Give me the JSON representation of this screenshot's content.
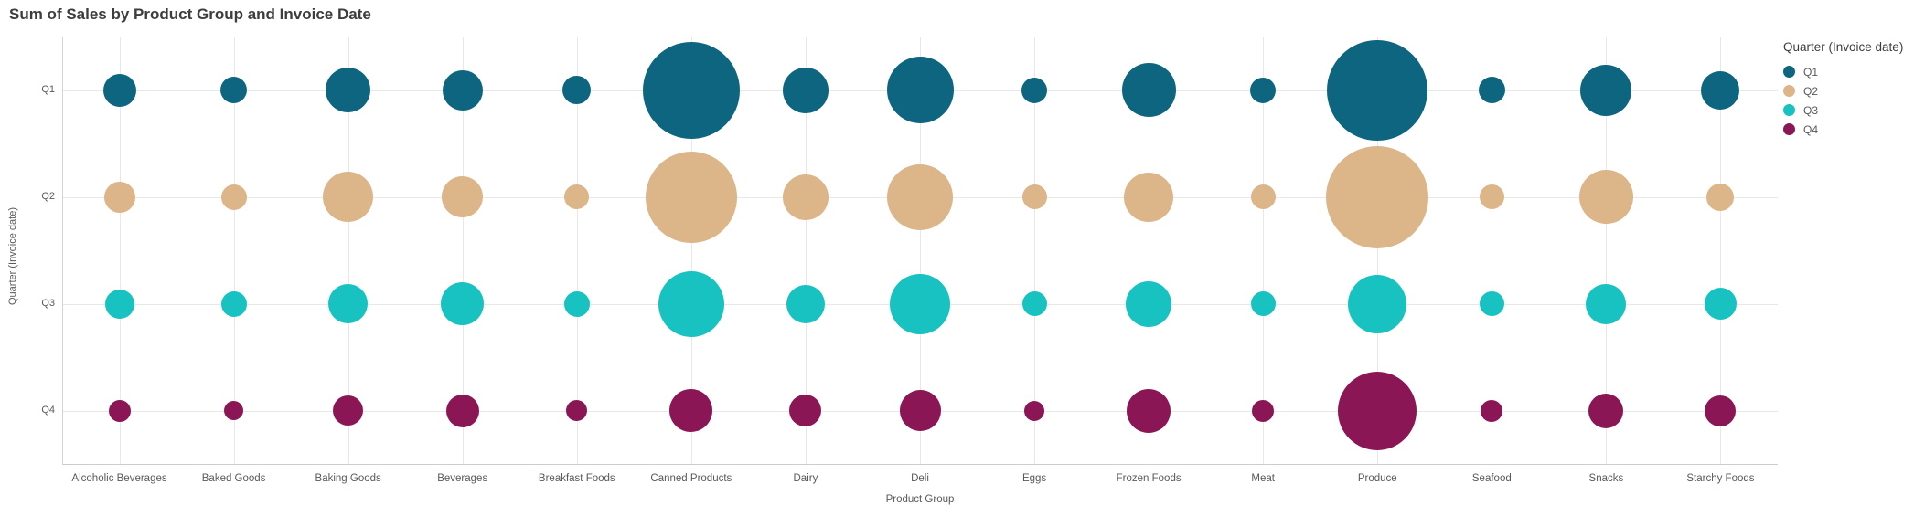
{
  "title": "Sum of Sales by Product Group and Invoice Date",
  "legend": {
    "title": "Quarter (Invoice date)",
    "items": [
      {
        "label": "Q1",
        "color": "#0d657f"
      },
      {
        "label": "Q2",
        "color": "#dcb589"
      },
      {
        "label": "Q3",
        "color": "#17c2c1"
      },
      {
        "label": "Q4",
        "color": "#8b1656"
      }
    ]
  },
  "axes": {
    "x_title": "Product Group",
    "y_title": "Quarter (Invoice date)",
    "y_ticks": [
      "Q1",
      "Q2",
      "Q3",
      "Q4"
    ]
  },
  "chart_data": {
    "type": "scatter",
    "subtype": "bubble",
    "title": "Sum of Sales by Product Group and Invoice Date",
    "xlabel": "Product Group",
    "ylabel": "Quarter (Invoice date)",
    "size_encoding": "bubble area encodes Sum of Sales; no numeric value labels are shown on screen",
    "grid": true,
    "legend_position": "right",
    "categories": [
      "Alcoholic Beverages",
      "Baked Goods",
      "Baking Goods",
      "Beverages",
      "Breakfast Foods",
      "Canned Products",
      "Dairy",
      "Deli",
      "Eggs",
      "Frozen Foods",
      "Meat",
      "Produce",
      "Seafood",
      "Snacks",
      "Starchy Foods"
    ],
    "y_categories": [
      "Q1",
      "Q2",
      "Q3",
      "Q4"
    ],
    "series": [
      {
        "name": "Q1",
        "color": "#0d657f",
        "radius_px": [
          18,
          14.5,
          24.5,
          22,
          15.5,
          53,
          25,
          36.5,
          14,
          29.5,
          14,
          55,
          14.5,
          28,
          21
        ]
      },
      {
        "name": "Q2",
        "color": "#dcb589",
        "radius_px": [
          17,
          14,
          27.5,
          22.5,
          13.5,
          50,
          25,
          36,
          13.5,
          27,
          13.5,
          56,
          13.5,
          29.5,
          15
        ]
      },
      {
        "name": "Q3",
        "color": "#17c2c1",
        "radius_px": [
          16,
          14,
          21.5,
          23.5,
          14,
          36,
          21,
          33,
          13.5,
          25,
          13.5,
          32,
          13.5,
          22,
          17.5
        ]
      },
      {
        "name": "Q4",
        "color": "#8b1656",
        "radius_px": [
          12,
          10.5,
          16.5,
          18,
          11.5,
          23.5,
          17.5,
          22.5,
          11,
          24,
          12,
          43,
          12,
          19,
          17
        ]
      }
    ]
  }
}
